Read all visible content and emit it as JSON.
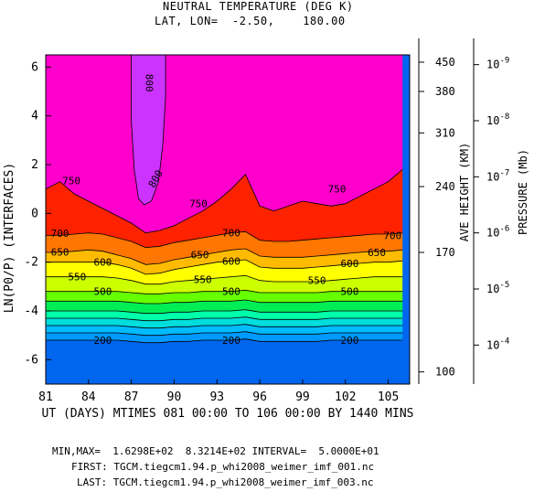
{
  "header": {
    "title": "NEUTRAL TEMPERATURE (DEG K)",
    "subtitle": "LAT, LON=  -2.50,    180.00"
  },
  "footer": {
    "minmax": "MIN,MAX=  1.6298E+02  8.3214E+02 INTERVAL=  5.0000E+01",
    "first": "FIRST: TGCM.tiegcm1.94.p_whi2008_weimer_imf_001.nc",
    "last": "LAST: TGCM.tiegcm1.94.p_whi2008_weimer_imf_003.nc"
  },
  "chart_data": {
    "type": "contour",
    "xlabel": "UT (DAYS) MTIMES 081 00:00 TO 106 00:00 BY 1440 MINS",
    "ylabel": "LN(P0/P) (INTERFACES)",
    "xlim": [
      81,
      106.5
    ],
    "ylim": [
      -7,
      6.5
    ],
    "xticks": [
      81,
      84,
      87,
      90,
      93,
      96,
      99,
      102,
      105
    ],
    "yticks": [
      -6,
      -4,
      -2,
      0,
      2,
      4,
      6
    ],
    "right_axis_height": {
      "label": "AVE HEIGHT (KM)",
      "ticks": [
        {
          "label": "100",
          "y": -6.5
        },
        {
          "label": "170",
          "y": -1.6
        },
        {
          "label": "240",
          "y": 1.1
        },
        {
          "label": "310",
          "y": 3.3
        },
        {
          "label": "380",
          "y": 5.0
        },
        {
          "label": "450",
          "y": 6.2
        }
      ]
    },
    "right_axis_pressure": {
      "label": "PRESSURE (Mb)",
      "ticks": [
        {
          "label": "10^-4",
          "y": -5.4
        },
        {
          "label": "10^-5",
          "y": -3.1
        },
        {
          "label": "10^-6",
          "y": -0.8
        },
        {
          "label": "10^-7",
          "y": 1.5
        },
        {
          "label": "10^-8",
          "y": 3.8
        },
        {
          "label": "10^-9",
          "y": 6.1
        }
      ]
    },
    "levels": [
      200,
      250,
      300,
      350,
      400,
      450,
      500,
      550,
      600,
      650,
      700,
      750,
      800
    ],
    "colors": [
      "#0066ee",
      "#0099ff",
      "#00bbff",
      "#00dddd",
      "#00ffaa",
      "#00ee55",
      "#66ff00",
      "#ccff00",
      "#ffff00",
      "#ffbb00",
      "#ff7700",
      "#ff2200",
      "#ff0044",
      "#ff00cc",
      "#cc33ff"
    ],
    "x": [
      81,
      82,
      83,
      84,
      85,
      86,
      87,
      88,
      89,
      90,
      91,
      92,
      93,
      94,
      95,
      96,
      97,
      98,
      99,
      100,
      101,
      102,
      103,
      104,
      105,
      106
    ],
    "isolines": {
      "200": [
        -5.2,
        -5.2,
        -5.2,
        -5.2,
        -5.2,
        -5.2,
        -5.25,
        -5.3,
        -5.3,
        -5.25,
        -5.25,
        -5.2,
        -5.2,
        -5.2,
        -5.15,
        -5.25,
        -5.25,
        -5.25,
        -5.25,
        -5.25,
        -5.2,
        -5.2,
        -5.2,
        -5.2,
        -5.2,
        -5.2
      ],
      "250": [
        -4.9,
        -4.9,
        -4.9,
        -4.9,
        -4.9,
        -4.9,
        -4.95,
        -5.0,
        -5.0,
        -4.95,
        -4.95,
        -4.9,
        -4.9,
        -4.9,
        -4.85,
        -4.95,
        -4.95,
        -4.95,
        -4.95,
        -4.95,
        -4.9,
        -4.9,
        -4.9,
        -4.9,
        -4.9,
        -4.9
      ],
      "300": [
        -4.6,
        -4.6,
        -4.6,
        -4.6,
        -4.6,
        -4.6,
        -4.65,
        -4.7,
        -4.7,
        -4.65,
        -4.65,
        -4.6,
        -4.6,
        -4.6,
        -4.55,
        -4.65,
        -4.65,
        -4.65,
        -4.65,
        -4.65,
        -4.6,
        -4.6,
        -4.6,
        -4.6,
        -4.6,
        -4.6
      ],
      "350": [
        -4.3,
        -4.3,
        -4.3,
        -4.3,
        -4.3,
        -4.3,
        -4.35,
        -4.4,
        -4.4,
        -4.35,
        -4.35,
        -4.3,
        -4.3,
        -4.3,
        -4.25,
        -4.35,
        -4.35,
        -4.35,
        -4.35,
        -4.35,
        -4.3,
        -4.3,
        -4.3,
        -4.3,
        -4.3,
        -4.3
      ],
      "400": [
        -4.0,
        -4.0,
        -4.0,
        -4.0,
        -4.0,
        -4.0,
        -4.05,
        -4.1,
        -4.1,
        -4.05,
        -4.05,
        -4.0,
        -4.0,
        -4.0,
        -3.95,
        -4.05,
        -4.05,
        -4.05,
        -4.05,
        -4.05,
        -4.0,
        -4.0,
        -4.0,
        -4.0,
        -4.0,
        -4.0
      ],
      "450": [
        -3.6,
        -3.6,
        -3.6,
        -3.6,
        -3.6,
        -3.6,
        -3.65,
        -3.7,
        -3.7,
        -3.65,
        -3.65,
        -3.6,
        -3.6,
        -3.6,
        -3.55,
        -3.65,
        -3.65,
        -3.65,
        -3.65,
        -3.65,
        -3.6,
        -3.6,
        -3.6,
        -3.6,
        -3.6,
        -3.6
      ],
      "500": [
        -3.2,
        -3.2,
        -3.2,
        -3.2,
        -3.2,
        -3.2,
        -3.25,
        -3.3,
        -3.3,
        -3.25,
        -3.25,
        -3.2,
        -3.2,
        -3.2,
        -3.15,
        -3.25,
        -3.25,
        -3.25,
        -3.25,
        -3.25,
        -3.2,
        -3.2,
        -3.2,
        -3.2,
        -3.2,
        -3.2
      ],
      "550": [
        -2.6,
        -2.6,
        -2.6,
        -2.6,
        -2.6,
        -2.65,
        -2.75,
        -2.9,
        -2.9,
        -2.8,
        -2.75,
        -2.7,
        -2.65,
        -2.6,
        -2.55,
        -2.75,
        -2.8,
        -2.8,
        -2.8,
        -2.8,
        -2.75,
        -2.7,
        -2.65,
        -2.6,
        -2.6,
        -2.6
      ],
      "600": [
        -2.0,
        -2.0,
        -2.0,
        -2.0,
        -2.0,
        -2.1,
        -2.25,
        -2.5,
        -2.45,
        -2.3,
        -2.2,
        -2.1,
        -2.0,
        -1.95,
        -1.9,
        -2.2,
        -2.25,
        -2.25,
        -2.25,
        -2.2,
        -2.15,
        -2.1,
        -2.05,
        -2.0,
        -2.0,
        -1.95
      ],
      "650": [
        -1.6,
        -1.6,
        -1.55,
        -1.5,
        -1.55,
        -1.7,
        -1.85,
        -2.1,
        -2.05,
        -1.9,
        -1.8,
        -1.7,
        -1.6,
        -1.5,
        -1.45,
        -1.75,
        -1.8,
        -1.8,
        -1.8,
        -1.75,
        -1.7,
        -1.65,
        -1.6,
        -1.55,
        -1.55,
        -1.5
      ],
      "700": [
        -0.9,
        -0.9,
        -0.85,
        -0.8,
        -0.85,
        -1.0,
        -1.15,
        -1.4,
        -1.35,
        -1.2,
        -1.1,
        -1.0,
        -0.9,
        -0.8,
        -0.75,
        -1.1,
        -1.15,
        -1.15,
        -1.1,
        -1.05,
        -1.0,
        -0.95,
        -0.9,
        -0.85,
        -0.85,
        -0.8
      ],
      "750": [
        1.0,
        1.3,
        0.8,
        0.5,
        0.2,
        -0.1,
        -0.4,
        -0.8,
        -0.7,
        -0.5,
        -0.2,
        0.1,
        0.5,
        1.0,
        1.6,
        0.3,
        0.1,
        0.3,
        0.5,
        0.4,
        0.3,
        0.4,
        0.7,
        1.0,
        1.3,
        1.8
      ]
    },
    "plume_800_path": [
      [
        87.0,
        6.5
      ],
      [
        87.0,
        3.8
      ],
      [
        87.2,
        1.8
      ],
      [
        87.5,
        0.6
      ],
      [
        87.9,
        0.35
      ],
      [
        88.4,
        0.5
      ],
      [
        88.9,
        1.3
      ],
      [
        89.2,
        2.8
      ],
      [
        89.4,
        4.8
      ],
      [
        89.4,
        6.5
      ]
    ],
    "label_positions": [
      {
        "text": "800",
        "x": 88.0,
        "y": 5.5,
        "rotate": 90
      },
      {
        "text": "800",
        "x": 88.9,
        "y": 1.5,
        "rotate": -60
      },
      {
        "text": "750",
        "x": 82.8,
        "y": 1.35
      },
      {
        "text": "750",
        "x": 91.7,
        "y": 0.4
      },
      {
        "text": "750",
        "x": 101.4,
        "y": 1.0
      },
      {
        "text": "700",
        "x": 82.0,
        "y": -0.82
      },
      {
        "text": "700",
        "x": 94.0,
        "y": -0.8
      },
      {
        "text": "700",
        "x": 105.3,
        "y": -0.9
      },
      {
        "text": "650",
        "x": 82.0,
        "y": -1.58
      },
      {
        "text": "650",
        "x": 91.8,
        "y": -1.7
      },
      {
        "text": "650",
        "x": 104.2,
        "y": -1.6
      },
      {
        "text": "600",
        "x": 85.0,
        "y": -2.0
      },
      {
        "text": "600",
        "x": 94.0,
        "y": -1.95
      },
      {
        "text": "600",
        "x": 102.3,
        "y": -2.05
      },
      {
        "text": "550",
        "x": 83.2,
        "y": -2.6
      },
      {
        "text": "550",
        "x": 92.0,
        "y": -2.7
      },
      {
        "text": "550",
        "x": 100.0,
        "y": -2.75
      },
      {
        "text": "500",
        "x": 85.0,
        "y": -3.2
      },
      {
        "text": "500",
        "x": 94.0,
        "y": -3.2
      },
      {
        "text": "500",
        "x": 102.3,
        "y": -3.2
      },
      {
        "text": "200",
        "x": 85.0,
        "y": -5.2
      },
      {
        "text": "200",
        "x": 94.0,
        "y": -5.2
      },
      {
        "text": "200",
        "x": 102.3,
        "y": -5.2
      }
    ]
  }
}
